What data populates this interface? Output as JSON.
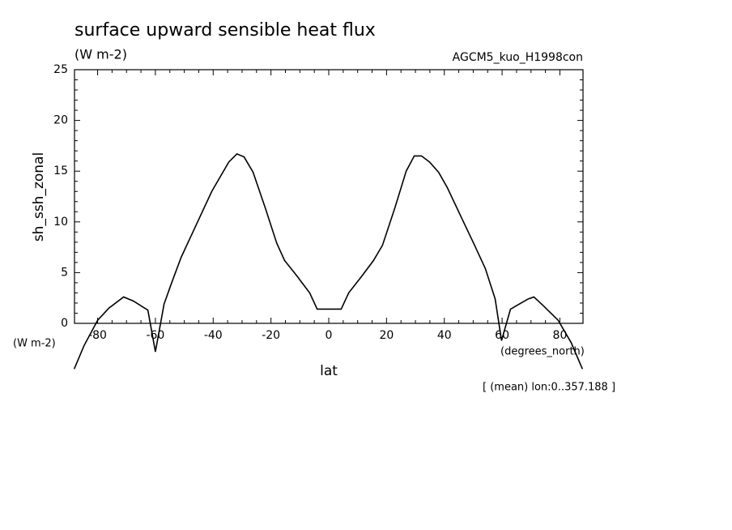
{
  "chart_data": {
    "type": "line",
    "title": "surface upward sensible heat flux",
    "subtitle": "(W m-2)",
    "annotation": "AGCM5_kuo_H1998con",
    "y_unit_label": "(W m-2)",
    "x_unit_label": "(degrees_north)",
    "footnote": "[ (mean) lon:0..357.188 ]",
    "x_label": "lat",
    "y_label": "sh_ssh_zonal",
    "xlim": [
      -88,
      88
    ],
    "ylim": [
      0,
      25
    ],
    "xticks": [
      -80,
      -60,
      -40,
      -20,
      0,
      20,
      40,
      60,
      80
    ],
    "yticks": [
      0,
      5,
      10,
      15,
      20,
      25
    ],
    "color": "#000000",
    "x": [
      -88.1,
      -84.7,
      -80,
      -76.1,
      -71,
      -67.6,
      -62.6,
      -60,
      -57,
      -54.5,
      -51.1,
      -48,
      -40.5,
      -34.6,
      -31.8,
      -29.3,
      -26.2,
      -22,
      -18,
      -15.3,
      -11.1,
      -6.6,
      -4,
      4.3,
      6.9,
      11.3,
      15.5,
      18.6,
      22.8,
      26.8,
      29.6,
      32.1,
      34.9,
      38,
      41,
      45.8,
      50.3,
      54.2,
      57.6,
      59.8,
      62.9,
      69,
      71,
      74.4,
      79.4,
      83.9,
      87.8
    ],
    "values": [
      -4.5,
      -2.2,
      0.3,
      1.5,
      2.6,
      2.2,
      1.3,
      -2.8,
      1.9,
      3.9,
      6.5,
      8.4,
      13.0,
      15.9,
      16.7,
      16.4,
      14.9,
      11.4,
      7.9,
      6.2,
      4.7,
      3.0,
      1.4,
      1.4,
      3.0,
      4.6,
      6.2,
      7.7,
      11.3,
      15.0,
      16.5,
      16.5,
      15.9,
      14.9,
      13.4,
      10.5,
      7.8,
      5.4,
      2.4,
      -1.7,
      1.4,
      2.4,
      2.6,
      1.7,
      0.3,
      -1.9,
      -4.5
    ]
  }
}
